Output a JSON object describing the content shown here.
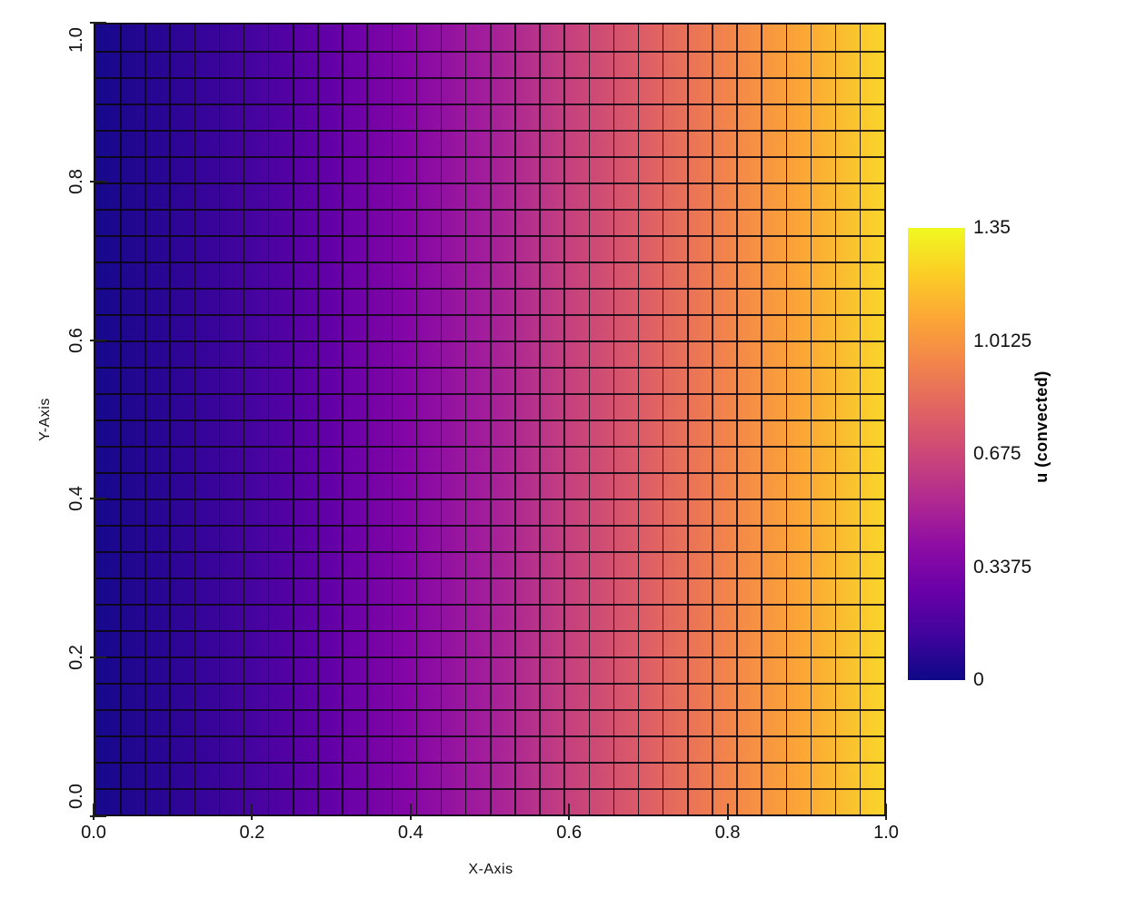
{
  "figure": {
    "background": "#ffffff",
    "x_axis_title": "X-Axis",
    "y_axis_title": "Y-Axis"
  },
  "chart_data": {
    "type": "heatmap",
    "title": "",
    "xlabel": "X-Axis",
    "ylabel": "Y-Axis",
    "colorbar_label": "u (convected)",
    "x_range": [
      0.0,
      1.0
    ],
    "y_range": [
      0.0,
      1.0
    ],
    "x_tick_labels": [
      "0.0",
      "0.2",
      "0.4",
      "0.6",
      "0.8",
      "1.0"
    ],
    "y_tick_labels": [
      "0.0",
      "0.2",
      "0.4",
      "0.6",
      "0.8",
      "1.0"
    ],
    "colorbar_tick_labels": [
      "0",
      "0.3375",
      "0.675",
      "1.0125",
      "1.35"
    ],
    "vmin": 0,
    "vmax": 1.35,
    "grid_cols": 32,
    "grid_rows": 30,
    "grid_visible": true,
    "colormap": "plasma",
    "legend_position": "colorbar-right",
    "field_description": "u varies with x only (uniform in y); monotonic ramp from u=0 at x=0 to u≈1.26 at x=1, approx u(x)=1.26*x^1.3",
    "u_profile": {
      "x": [
        0.0,
        0.1,
        0.2,
        0.3,
        0.4,
        0.5,
        0.6,
        0.7,
        0.8,
        0.9,
        1.0
      ],
      "u": [
        0.0,
        0.06,
        0.16,
        0.26,
        0.38,
        0.51,
        0.65,
        0.79,
        0.94,
        1.1,
        1.26
      ]
    },
    "mesh_gradient_stops": [
      {
        "pos": 0,
        "color": "#16098c"
      },
      {
        "pos": 10,
        "color": "#2c0594"
      },
      {
        "pos": 20,
        "color": "#46039f"
      },
      {
        "pos": 30,
        "color": "#6400a7"
      },
      {
        "pos": 40,
        "color": "#8606a6"
      },
      {
        "pos": 50,
        "color": "#a41f9a"
      },
      {
        "pos": 60,
        "color": "#c5407e"
      },
      {
        "pos": 70,
        "color": "#de5f65"
      },
      {
        "pos": 80,
        "color": "#f2844b"
      },
      {
        "pos": 90,
        "color": "#fca835"
      },
      {
        "pos": 100,
        "color": "#f9d52a"
      }
    ],
    "colorbar_gradient_stops": [
      {
        "pos": 0,
        "color": "#0d0887"
      },
      {
        "pos": 10,
        "color": "#41049d"
      },
      {
        "pos": 20,
        "color": "#6a00a8"
      },
      {
        "pos": 30,
        "color": "#8f0da4"
      },
      {
        "pos": 40,
        "color": "#b12a90"
      },
      {
        "pos": 50,
        "color": "#cc4778"
      },
      {
        "pos": 60,
        "color": "#e16462"
      },
      {
        "pos": 70,
        "color": "#f2844b"
      },
      {
        "pos": 80,
        "color": "#fca636"
      },
      {
        "pos": 90,
        "color": "#fcce25"
      },
      {
        "pos": 100,
        "color": "#f0f921"
      }
    ]
  }
}
